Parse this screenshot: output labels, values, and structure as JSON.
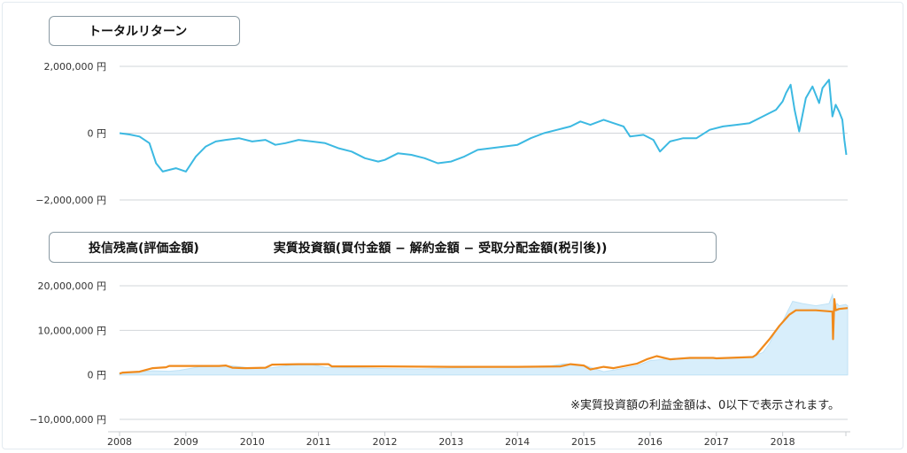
{
  "chart_data": [
    {
      "type": "line",
      "legend": [
        "トータルリターン"
      ],
      "y_ticks": [
        "2,000,000 円",
        "0 円",
        "−2,000,000 円"
      ],
      "ylim": [
        -2000000,
        2000000
      ],
      "xlim": [
        2008.0,
        2018.98
      ],
      "series": [
        {
          "name": "トータルリターン",
          "color": "#3cb9e2",
          "x": [
            2008.0,
            2008.15,
            2008.3,
            2008.45,
            2008.55,
            2008.65,
            2008.75,
            2008.85,
            2009.0,
            2009.15,
            2009.3,
            2009.45,
            2009.6,
            2009.8,
            2010.0,
            2010.2,
            2010.35,
            2010.5,
            2010.7,
            2010.9,
            2011.1,
            2011.3,
            2011.5,
            2011.7,
            2011.9,
            2012.0,
            2012.2,
            2012.4,
            2012.6,
            2012.8,
            2013.0,
            2013.2,
            2013.4,
            2013.6,
            2013.8,
            2014.0,
            2014.2,
            2014.4,
            2014.6,
            2014.8,
            2014.95,
            2015.1,
            2015.3,
            2015.45,
            2015.6,
            2015.7,
            2015.9,
            2016.05,
            2016.15,
            2016.3,
            2016.5,
            2016.7,
            2016.9,
            2017.1,
            2017.3,
            2017.5,
            2017.7,
            2017.9,
            2018.0,
            2018.05,
            2018.12,
            2018.18,
            2018.25,
            2018.35,
            2018.45,
            2018.55,
            2018.6,
            2018.7,
            2018.75,
            2018.8,
            2018.85,
            2018.9,
            2018.93,
            2018.96
          ],
          "values": [
            0,
            -40000,
            -100000,
            -300000,
            -900000,
            -1150000,
            -1100000,
            -1050000,
            -1150000,
            -700000,
            -400000,
            -250000,
            -200000,
            -150000,
            -250000,
            -200000,
            -350000,
            -300000,
            -200000,
            -250000,
            -300000,
            -450000,
            -550000,
            -750000,
            -850000,
            -800000,
            -600000,
            -650000,
            -750000,
            -900000,
            -850000,
            -700000,
            -500000,
            -450000,
            -400000,
            -350000,
            -150000,
            0,
            100000,
            200000,
            350000,
            250000,
            400000,
            300000,
            200000,
            -100000,
            -50000,
            -200000,
            -550000,
            -250000,
            -150000,
            -150000,
            100000,
            200000,
            250000,
            300000,
            500000,
            700000,
            950000,
            1200000,
            1450000,
            700000,
            50000,
            1050000,
            1400000,
            900000,
            1350000,
            1600000,
            500000,
            850000,
            650000,
            400000,
            -200000,
            -650000
          ]
        }
      ]
    },
    {
      "type": "area",
      "legend": [
        "投信残高(評価金額)",
        "実質投資額(買付金額 − 解約金額 − 受取分配金額(税引後))"
      ],
      "y_ticks": [
        "20,000,000 円",
        "10,000,000 円",
        "0 円",
        "−10,000,000 円"
      ],
      "ylim": [
        -10000000,
        20000000
      ],
      "xlim": [
        2008.0,
        2018.98
      ],
      "x_ticks": [
        "2008",
        "2009",
        "2010",
        "2011",
        "2012",
        "2013",
        "2014",
        "2015",
        "2016",
        "2017",
        "2018"
      ],
      "note": "※実質投資額の利益金額は、0以下で表示されます。",
      "series": [
        {
          "name": "投信残高(評価金額)",
          "color": "#d8eefb",
          "x": [
            2008.0,
            2008.1,
            2008.3,
            2008.5,
            2008.75,
            2008.9,
            2009.2,
            2009.5,
            2009.7,
            2010.0,
            2010.3,
            2010.6,
            2010.9,
            2011.1,
            2011.5,
            2012.0,
            2012.5,
            2013.0,
            2013.5,
            2014.0,
            2014.5,
            2014.7,
            2015.0,
            2015.3,
            2015.5,
            2015.8,
            2016.0,
            2016.2,
            2016.5,
            2017.0,
            2017.5,
            2017.7,
            2017.8,
            2017.9,
            2018.0,
            2018.1,
            2018.15,
            2018.3,
            2018.5,
            2018.7,
            2018.75,
            2018.78,
            2018.82,
            2018.85,
            2018.95,
            2018.98
          ],
          "values": [
            300000,
            400000,
            700000,
            900000,
            800000,
            1000000,
            1800000,
            1900000,
            2000000,
            1500000,
            1600000,
            2200000,
            2300000,
            1700000,
            1600000,
            1400000,
            1300000,
            1500000,
            1700000,
            1800000,
            2000000,
            2500000,
            2200000,
            700000,
            1200000,
            2000000,
            3200000,
            3500000,
            3600000,
            3800000,
            3900000,
            5000000,
            7000000,
            10000000,
            12000000,
            15000000,
            16500000,
            16000000,
            15500000,
            16000000,
            18000000,
            15000000,
            16000000,
            15500000,
            15800000,
            15500000
          ]
        },
        {
          "name": "実質投資額(買付金額 − 解約金額 − 受取分配金額(税引後))",
          "color": "#f08a1c",
          "x": [
            2008.0,
            2008.05,
            2008.3,
            2008.5,
            2008.7,
            2008.75,
            2009.5,
            2009.6,
            2009.7,
            2009.9,
            2010.2,
            2010.3,
            2010.7,
            2011.15,
            2011.2,
            2012.0,
            2013.0,
            2014.0,
            2014.65,
            2014.8,
            2015.0,
            2015.1,
            2015.3,
            2015.45,
            2015.8,
            2015.95,
            2016.1,
            2016.3,
            2016.6,
            2016.95,
            2017.0,
            2017.55,
            2017.6,
            2017.8,
            2017.95,
            2018.1,
            2018.2,
            2018.5,
            2018.75,
            2018.76,
            2018.78,
            2018.8,
            2018.85,
            2018.98
          ],
          "values": [
            300000,
            500000,
            700000,
            1500000,
            1700000,
            2000000,
            2000000,
            2100000,
            1600000,
            1500000,
            1600000,
            2300000,
            2400000,
            2400000,
            1900000,
            1900000,
            1800000,
            1800000,
            1900000,
            2400000,
            2100000,
            1200000,
            1800000,
            1500000,
            2500000,
            3500000,
            4200000,
            3500000,
            3800000,
            3800000,
            3700000,
            4000000,
            4500000,
            8000000,
            11000000,
            13500000,
            14500000,
            14500000,
            14200000,
            8000000,
            17000000,
            14500000,
            14800000,
            15000000
          ]
        }
      ]
    }
  ]
}
